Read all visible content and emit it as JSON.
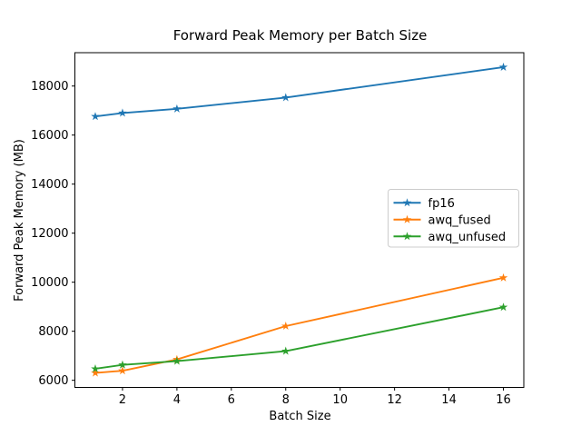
{
  "window": {
    "background_color": "#ffffff",
    "axes_color": "#000000",
    "legend_border_color": "#cccccc",
    "legend_background_color": "#ffffff"
  },
  "chart_data": {
    "type": "line",
    "title": "Forward Peak Memory per Batch Size",
    "xlabel": "Batch Size",
    "ylabel": "Forward Peak Memory (MB)",
    "x": [
      1,
      2,
      4,
      8,
      16
    ],
    "series": [
      {
        "name": "fp16",
        "color": "#1f77b4",
        "marker": "star",
        "values": [
          16760,
          16900,
          17070,
          17530,
          18770
        ]
      },
      {
        "name": "awq_fused",
        "color": "#ff7f0e",
        "marker": "star",
        "values": [
          6300,
          6390,
          6850,
          8210,
          10180
        ]
      },
      {
        "name": "awq_unfused",
        "color": "#2ca02c",
        "marker": "star",
        "values": [
          6470,
          6630,
          6780,
          7190,
          8980
        ]
      }
    ],
    "xticks": [
      2,
      4,
      6,
      8,
      10,
      12,
      14,
      16
    ],
    "yticks": [
      6000,
      8000,
      10000,
      12000,
      14000,
      16000,
      18000
    ],
    "xlim": [
      0.25,
      16.75
    ],
    "ylim": [
      5710,
      19360
    ],
    "grid": false,
    "legend_position": "center right"
  }
}
